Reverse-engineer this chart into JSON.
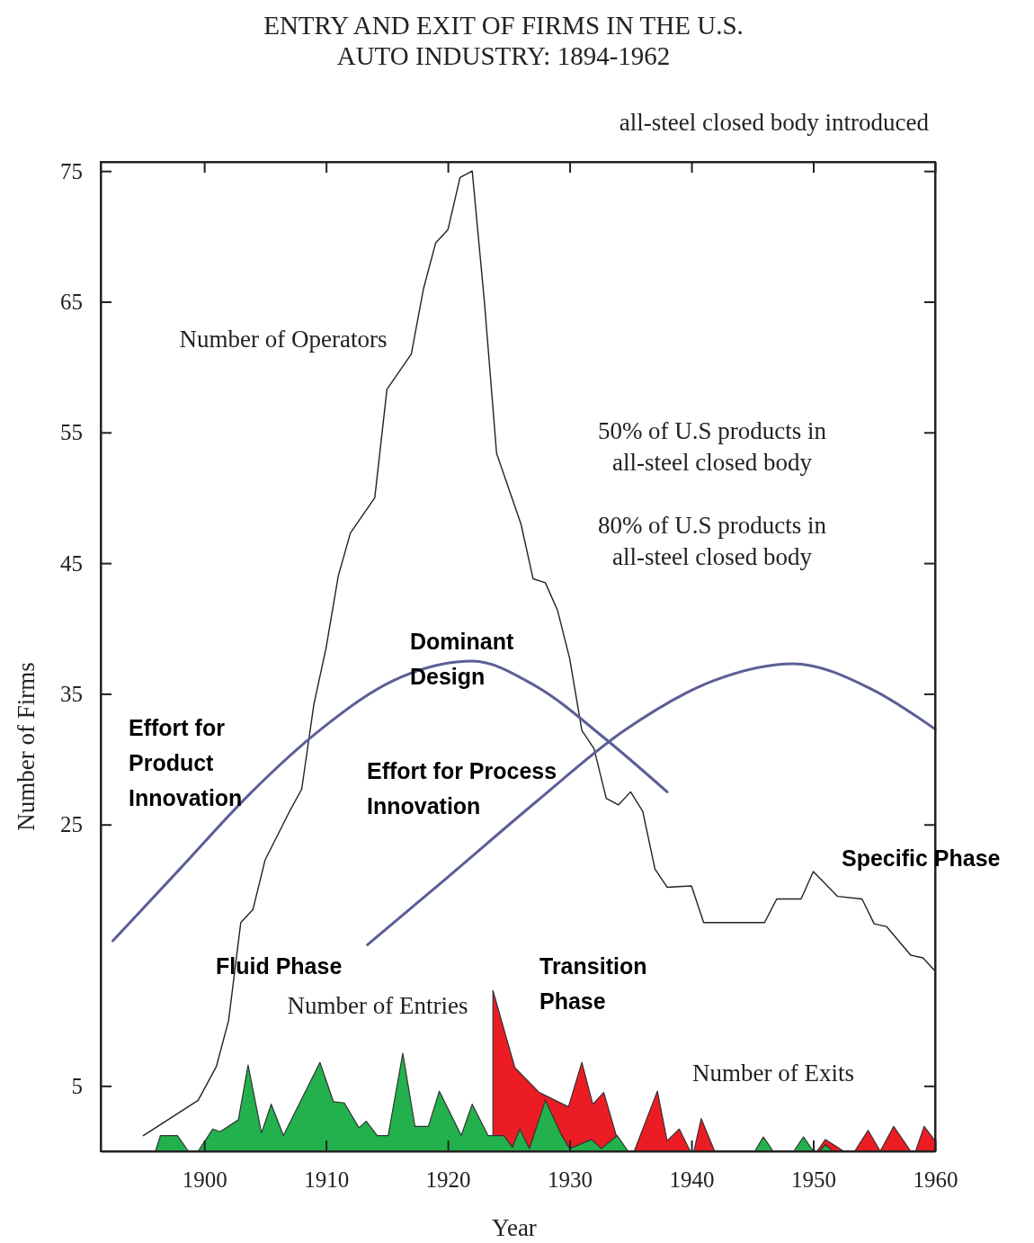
{
  "chart_data": {
    "type": "line",
    "title": "ENTRY AND EXIT OF FIRMS IN THE U.S.\nAUTO INDUSTRY: 1894-1962",
    "xlabel": "Year",
    "ylabel": "Number of Firms",
    "xlim": [
      1891.5,
      1960
    ],
    "xticks": [
      1900,
      1910,
      1920,
      1930,
      1940,
      1950,
      1960
    ],
    "ylim": [
      0,
      75.7
    ],
    "yticks": [
      5,
      25,
      35,
      45,
      55,
      65,
      75
    ],
    "series": [
      {
        "color": "#222222",
        "x": [
          1895,
          1899.5,
          1901,
          1902,
          1903,
          1904,
          1905,
          1907,
          1908,
          1909,
          1910,
          1911,
          1912,
          1914,
          1915,
          1917,
          1918,
          1919,
          1920,
          1921,
          1922,
          1923,
          1924,
          1926,
          1927,
          1928,
          1929,
          1930,
          1931,
          1932,
          1933,
          1934,
          1935,
          1936,
          1937,
          1938,
          1940,
          1941,
          1943,
          1946,
          1947,
          1949,
          1950,
          1952,
          1954,
          1955,
          1956,
          1958,
          1959,
          1960
        ],
        "values": [
          1.2,
          3.9,
          6.5,
          10,
          17.5,
          18.5,
          22.3,
          26,
          27.7,
          34.2,
          38.5,
          44,
          47.3,
          50,
          58.3,
          61,
          66,
          69.5,
          70.5,
          74.5,
          75,
          65,
          53.4,
          48,
          43.8,
          43.5,
          41.4,
          37.7,
          32.2,
          30.8,
          27,
          26.5,
          27.5,
          26,
          21.6,
          20.2,
          20.3,
          17.5,
          17.5,
          17.5,
          19.3,
          19.3,
          21.4,
          19.5,
          19.3,
          17.4,
          17.2,
          15,
          14.8,
          13.8
        ]
      },
      {
        "type": "area",
        "color": "#ec1c24",
        "x": [
          1923.7,
          1925.5,
          1927.5,
          1929.9,
          1931,
          1931.9,
          1932.8,
          1934.2,
          1935.3,
          1937.2,
          1938,
          1939,
          1939.9,
          1940.2,
          1940.8,
          1941.9,
          1950.3,
          1951,
          1952.5,
          1953.4,
          1954.5,
          1955.5,
          1956.6,
          1958,
          1958.4,
          1959.1,
          1960
        ],
        "values": [
          12.3,
          6.4,
          4.5,
          3.4,
          6.8,
          3.6,
          4.5,
          0,
          0,
          4.6,
          0.8,
          1.7,
          0,
          0,
          2.5,
          0,
          0,
          0.9,
          0,
          0,
          1.6,
          0,
          1.9,
          0,
          0,
          1.9,
          0.8
        ]
      },
      {
        "type": "area",
        "color": "#22b14c",
        "x": [
          1896,
          1896.4,
          1897.8,
          1898.7,
          1899.5,
          1900.7,
          1901.3,
          1902.8,
          1903.6,
          1904.7,
          1905.5,
          1906.5,
          1909.5,
          1910.6,
          1911.5,
          1912.7,
          1913.3,
          1914.2,
          1915.1,
          1916.3,
          1917.3,
          1918.4,
          1919.3,
          1921.1,
          1922,
          1923.3,
          1924.6,
          1925.3,
          1925.9,
          1926.7,
          1928,
          1929.3,
          1930,
          1931.8,
          1932.6,
          1933.9,
          1934.8,
          1945.2,
          1945.9,
          1946.7,
          1948.4,
          1949.2,
          1950,
          1950.5,
          1951,
          1951.6
        ],
        "values": [
          0,
          1.2,
          1.2,
          0,
          0,
          1.7,
          1.5,
          2.4,
          6.6,
          1.4,
          3.6,
          1.2,
          6.8,
          3.8,
          3.7,
          1.8,
          2.3,
          1.2,
          1.2,
          7.5,
          1.9,
          1.9,
          4.6,
          1.2,
          3.6,
          1.2,
          1.2,
          0.3,
          1.7,
          0.2,
          3.9,
          1.3,
          0.2,
          0.9,
          0.2,
          1.2,
          0,
          0,
          1.1,
          0,
          0,
          1.1,
          0,
          0,
          0.5,
          0
        ]
      },
      {
        "color": "#5b5e96",
        "x": [
          1892.5,
          1898,
          1903.8,
          1909.6,
          1915.5,
          1922,
          1927.2,
          1933,
          1938
        ],
        "values": [
          16.1,
          21.6,
          27.4,
          32.3,
          36,
          37.5,
          35.6,
          31.5,
          27.5
        ]
      },
      {
        "color": "#5b5e96",
        "x": [
          1913.4,
          1919.9,
          1927.2,
          1934.5,
          1941.8,
          1948.3,
          1954.9,
          1960
        ],
        "values": [
          15.8,
          20.9,
          26.7,
          32.2,
          36,
          37.3,
          35.3,
          32.3
        ]
      }
    ],
    "annotations": [
      "all-steel closed body introduced",
      "Number of Operators",
      "50% of U.S products in\nall-steel closed body",
      "80% of U.S products in\nall-steel closed body",
      "Number of Entries",
      "Number of Exits",
      "Dominant\nDesign",
      "Effort for\nProduct\nInnovation",
      "Effort for Process\nInnovation",
      "Fluid Phase",
      "Transition\nPhase",
      "Specific Phase"
    ]
  }
}
